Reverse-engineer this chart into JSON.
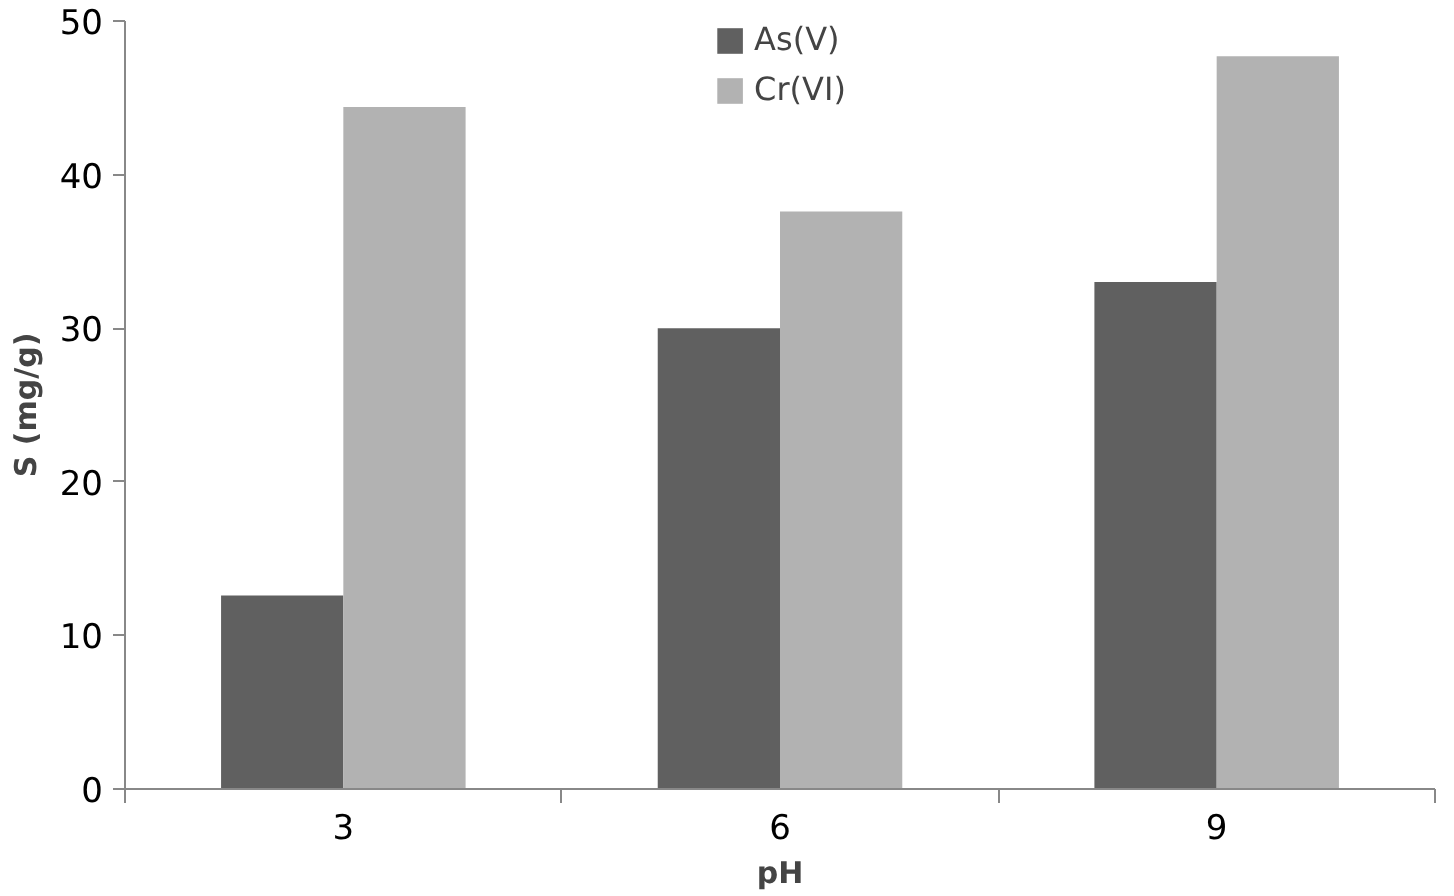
{
  "chart_data": {
    "type": "bar",
    "xlabel": "pH",
    "ylabel": "S (mg/g)",
    "categories": [
      "3",
      "6",
      "9"
    ],
    "series": [
      {
        "name": "As(V)",
        "color": "#606060",
        "values": [
          12.6,
          30.0,
          33.0
        ]
      },
      {
        "name": "Cr(VI)",
        "color": "#b2b2b2",
        "values": [
          44.4,
          37.6,
          47.7
        ]
      }
    ],
    "ylim": [
      0,
      50
    ],
    "yticks": [
      0,
      10,
      20,
      30,
      40,
      50
    ],
    "grid": false,
    "legend": "top"
  }
}
